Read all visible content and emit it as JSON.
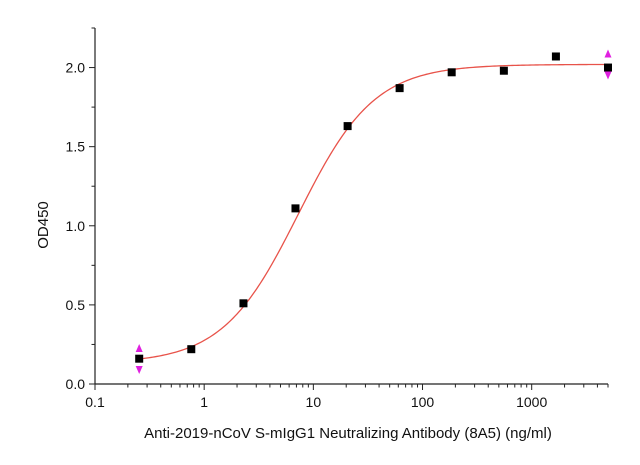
{
  "chart_data": {
    "type": "scatter",
    "title": "",
    "xlabel": "Anti-2019-nCoV S-mIgG1 Neutralizing Antibody (8A5) (ng/ml)",
    "ylabel": "OD450",
    "x_scale": "log",
    "xlim": [
      0.1,
      5000
    ],
    "ylim": [
      0.0,
      2.25
    ],
    "x_ticks": [
      0.1,
      1,
      10,
      100,
      1000
    ],
    "x_tick_labels": [
      "0.1",
      "1",
      "10",
      "100",
      "1000"
    ],
    "y_ticks": [
      0.0,
      0.5,
      1.0,
      1.5,
      2.0
    ],
    "y_tick_labels": [
      "0.0",
      "0.5",
      "1.0",
      "1.5",
      "2.0"
    ],
    "grid": false,
    "series": [
      {
        "x": [
          0.254,
          0.762,
          2.29,
          6.86,
          20.6,
          61.7,
          185,
          556,
          1667,
          5000
        ],
        "y": [
          0.16,
          0.22,
          0.51,
          1.11,
          1.63,
          1.87,
          1.97,
          1.98,
          2.07,
          2.0
        ],
        "marker": "square",
        "color": "#000000"
      }
    ],
    "fit_curve": {
      "model": "4PL",
      "bottom": 0.13,
      "top": 2.02,
      "ec50": 7.3,
      "hill": 1.25,
      "color": "#e8534a"
    },
    "end_arrow_color": "#e020e0"
  }
}
